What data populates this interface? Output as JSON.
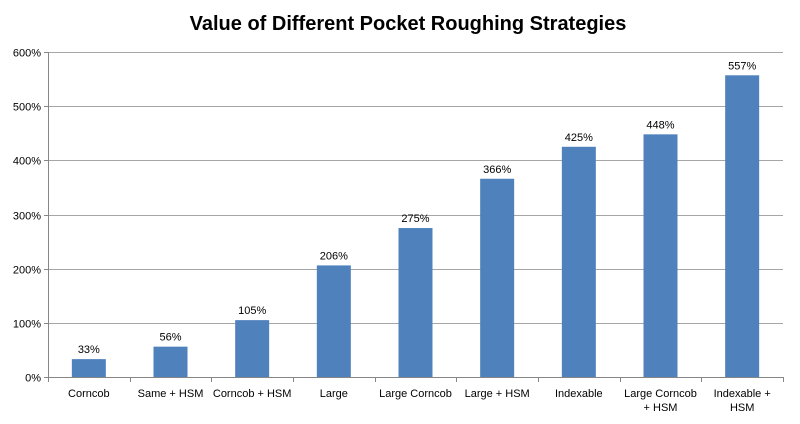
{
  "chart_data": {
    "type": "bar",
    "title": "Value of Different Pocket Roughing Strategies",
    "categories": [
      [
        "Corncob"
      ],
      [
        "Same + HSM"
      ],
      [
        "Corncob + HSM"
      ],
      [
        "Large"
      ],
      [
        "Large Corncob"
      ],
      [
        "Large + HSM"
      ],
      [
        "Indexable"
      ],
      [
        "Large Corncob",
        "+ HSM"
      ],
      [
        "Indexable +",
        "HSM"
      ]
    ],
    "values": [
      33,
      56,
      105,
      206,
      275,
      366,
      425,
      448,
      557
    ],
    "data_labels": [
      "33%",
      "56%",
      "105%",
      "206%",
      "275%",
      "366%",
      "425%",
      "448%",
      "557%"
    ],
    "y_ticks": [
      0,
      100,
      200,
      300,
      400,
      500,
      600
    ],
    "y_tick_labels": [
      "0%",
      "100%",
      "200%",
      "300%",
      "400%",
      "500%",
      "600%"
    ],
    "ylim": [
      0,
      600
    ],
    "xlabel": "",
    "ylabel": "",
    "grid": "horizontal",
    "legend": "none",
    "colors": {
      "bar": "#4f81bd",
      "grid": "#a6a6a6",
      "axis": "#868686"
    }
  }
}
